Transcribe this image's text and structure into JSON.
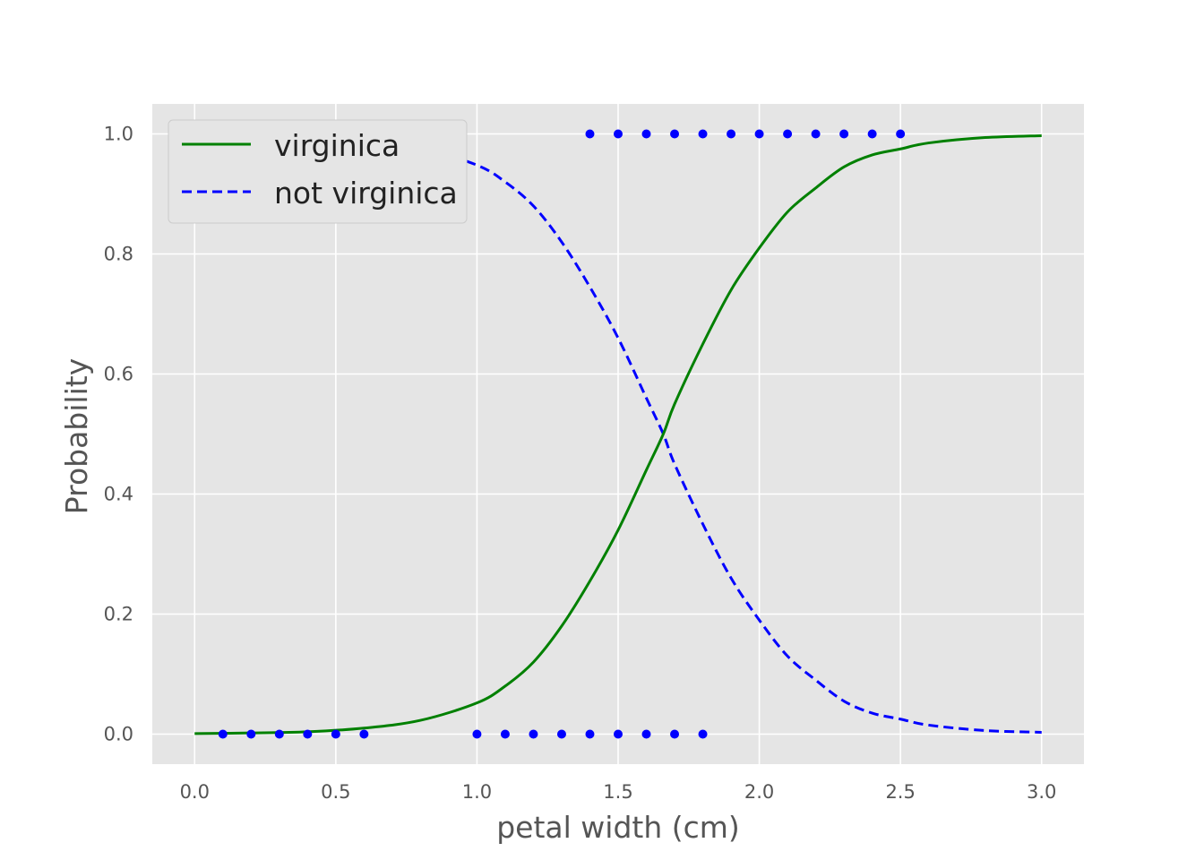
{
  "chart_data": {
    "type": "line",
    "xlabel": "petal width (cm)",
    "ylabel": "Probability",
    "xlim": [
      -0.15,
      3.15
    ],
    "ylim": [
      -0.05,
      1.05
    ],
    "xticks": [
      "0.0",
      "0.5",
      "1.0",
      "1.5",
      "2.0",
      "2.5",
      "3.0"
    ],
    "yticks": [
      "0.0",
      "0.2",
      "0.4",
      "0.6",
      "0.8",
      "1.0"
    ],
    "grid": true,
    "legend_position": "top-left",
    "series": [
      {
        "name": "virginica",
        "style": "solid",
        "color": "#008000",
        "x": [
          0.0,
          0.2,
          0.4,
          0.6,
          0.8,
          1.0,
          1.1,
          1.2,
          1.3,
          1.4,
          1.5,
          1.6,
          1.66,
          1.7,
          1.8,
          1.9,
          2.0,
          2.1,
          2.2,
          2.3,
          2.4,
          2.5,
          2.6,
          2.8,
          3.0
        ],
        "y": [
          0.001,
          0.002,
          0.004,
          0.01,
          0.023,
          0.052,
          0.08,
          0.12,
          0.18,
          0.255,
          0.34,
          0.44,
          0.5,
          0.55,
          0.65,
          0.74,
          0.81,
          0.87,
          0.91,
          0.945,
          0.965,
          0.975,
          0.985,
          0.994,
          0.997
        ]
      },
      {
        "name": "not virginica",
        "style": "dashed",
        "color": "#0000ff",
        "x": [
          0.0,
          0.2,
          0.4,
          0.6,
          0.8,
          1.0,
          1.1,
          1.2,
          1.3,
          1.4,
          1.5,
          1.6,
          1.66,
          1.7,
          1.8,
          1.9,
          2.0,
          2.1,
          2.2,
          2.3,
          2.4,
          2.5,
          2.6,
          2.8,
          3.0
        ],
        "y": [
          0.999,
          0.998,
          0.996,
          0.99,
          0.977,
          0.948,
          0.92,
          0.88,
          0.82,
          0.745,
          0.66,
          0.56,
          0.5,
          0.45,
          0.35,
          0.26,
          0.19,
          0.13,
          0.09,
          0.055,
          0.035,
          0.025,
          0.015,
          0.006,
          0.003
        ]
      }
    ],
    "points": {
      "color": "#0000ff",
      "class_1": {
        "y": 1.0,
        "x": [
          1.4,
          1.5,
          1.6,
          1.7,
          1.8,
          1.9,
          2.0,
          2.1,
          2.2,
          2.3,
          2.4,
          2.5
        ]
      },
      "class_0": {
        "y": 0.0,
        "x": [
          0.1,
          0.2,
          0.3,
          0.4,
          0.5,
          0.6,
          1.0,
          1.1,
          1.2,
          1.3,
          1.4,
          1.5,
          1.6,
          1.7,
          1.8
        ]
      }
    },
    "colors": {
      "plot_background": "#e5e5e5",
      "grid": "#ffffff",
      "legend_background": "#e5e5e5",
      "legend_border": "#cccccc"
    }
  }
}
